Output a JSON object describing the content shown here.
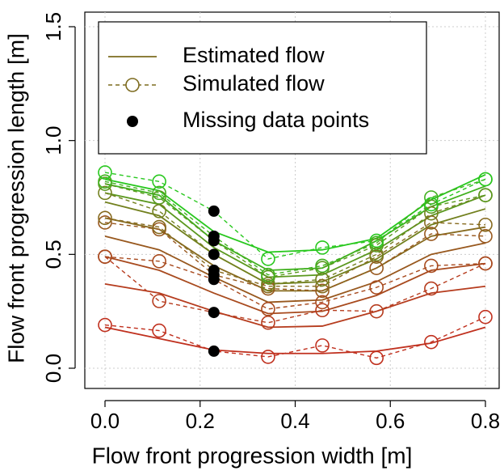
{
  "chart_data": {
    "type": "line",
    "xlabel": "Flow front progression width [m]",
    "ylabel": "Flow front progression length [m]",
    "x": [
      0,
      0.114,
      0.229,
      0.343,
      0.457,
      0.571,
      0.686,
      0.8
    ],
    "xlim": [
      0,
      0.8
    ],
    "xticks": [
      {
        "value": 0,
        "label": "0.0"
      },
      0.2,
      0.4,
      0.6,
      0.8
    ],
    "ylim": [
      0,
      1.5
    ],
    "yticks": [
      {
        "value": 0,
        "label": "0.0"
      },
      0.5,
      {
        "value": 1,
        "label": "1.0"
      },
      1.5
    ],
    "grid": true,
    "legend": {
      "position": "top-left",
      "color": "#7d6b1f",
      "missing_color": "#000000",
      "entries": [
        "Estimated flow",
        "Simulated flow",
        "Missing data points"
      ]
    },
    "missing_index": 2,
    "estimated": [
      {
        "color": "#c0301e",
        "values": [
          0.18,
          0.13,
          0.08,
          0.065,
          0.065,
          0.075,
          0.11,
          0.18
        ]
      },
      {
        "color": "#b63c1e",
        "values": [
          0.37,
          0.33,
          0.25,
          0.18,
          0.185,
          0.25,
          0.33,
          0.36
        ]
      },
      {
        "color": "#a84a1e",
        "values": [
          0.49,
          0.43,
          0.33,
          0.24,
          0.25,
          0.32,
          0.43,
          0.46
        ]
      },
      {
        "color": "#98581e",
        "values": [
          0.58,
          0.52,
          0.4,
          0.29,
          0.3,
          0.38,
          0.5,
          0.55
        ]
      },
      {
        "color": "#866a1e",
        "values": [
          0.66,
          0.61,
          0.45,
          0.34,
          0.34,
          0.44,
          0.58,
          0.62
        ]
      },
      {
        "color": "#72801e",
        "values": [
          0.73,
          0.67,
          0.5,
          0.37,
          0.38,
          0.48,
          0.63,
          0.7
        ]
      },
      {
        "color": "#5a981e",
        "values": [
          0.77,
          0.72,
          0.53,
          0.4,
          0.41,
          0.52,
          0.67,
          0.76
        ]
      },
      {
        "color": "#40b01e",
        "values": [
          0.81,
          0.76,
          0.56,
          0.43,
          0.44,
          0.56,
          0.71,
          0.8
        ]
      },
      {
        "color": "#28c81e",
        "values": [
          0.83,
          0.78,
          0.6,
          0.51,
          0.52,
          0.57,
          0.74,
          0.85
        ]
      }
    ],
    "simulated": [
      {
        "color": "#c0301e",
        "values": [
          0.19,
          0.165,
          0.075,
          0.05,
          0.1,
          0.045,
          0.115,
          0.225
        ]
      },
      {
        "color": "#b63c1e",
        "values": [
          0.49,
          0.295,
          0.245,
          0.2,
          0.255,
          0.25,
          0.35,
          0.46
        ]
      },
      {
        "color": "#a84a1e",
        "values": [
          0.49,
          0.47,
          0.39,
          0.26,
          0.29,
          0.355,
          0.45,
          0.46
        ]
      },
      {
        "color": "#98581e",
        "values": [
          0.64,
          0.61,
          0.41,
          0.35,
          0.34,
          0.44,
          0.59,
          0.58
        ]
      },
      {
        "color": "#866a1e",
        "values": [
          0.66,
          0.62,
          0.43,
          0.36,
          0.36,
          0.49,
          0.64,
          0.63
        ]
      },
      {
        "color": "#72801e",
        "values": [
          0.77,
          0.69,
          0.5,
          0.37,
          0.39,
          0.5,
          0.68,
          0.76
        ]
      },
      {
        "color": "#5a981e",
        "values": [
          0.81,
          0.75,
          0.56,
          0.4,
          0.44,
          0.54,
          0.71,
          0.76
        ]
      },
      {
        "color": "#40b01e",
        "values": [
          0.82,
          0.77,
          0.58,
          0.41,
          0.45,
          0.55,
          0.75,
          0.83
        ]
      },
      {
        "color": "#28c81e",
        "values": [
          0.86,
          0.82,
          0.69,
          0.48,
          0.53,
          0.56,
          0.72,
          0.83
        ]
      }
    ]
  }
}
